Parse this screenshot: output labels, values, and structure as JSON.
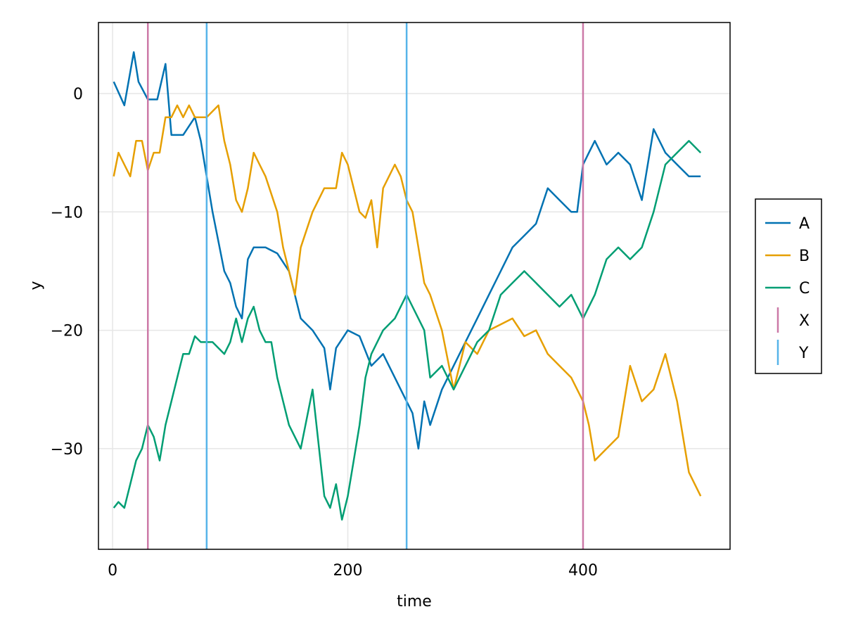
{
  "chart_data": {
    "type": "line",
    "title": "",
    "xlabel": "time",
    "ylabel": "y",
    "xlim": [
      -12,
      525
    ],
    "ylim": [
      -38.5,
      6
    ],
    "xticks": [
      0,
      200,
      400
    ],
    "yticks": [
      0,
      -10,
      -20,
      -30
    ],
    "ytick_labels": [
      "0",
      "−10",
      "−20",
      "−30"
    ],
    "grid": true,
    "legend_position": "right",
    "series": [
      {
        "name": "A",
        "color": "#0072B2",
        "x": [
          1,
          10,
          18,
          22,
          30,
          38,
          45,
          50,
          60,
          70,
          75,
          80,
          85,
          95,
          100,
          105,
          110,
          115,
          120,
          125,
          130,
          140,
          150,
          160,
          170,
          180,
          185,
          190,
          200,
          210,
          220,
          230,
          240,
          250,
          255,
          260,
          265,
          270,
          280,
          290,
          300,
          310,
          320,
          330,
          340,
          350,
          360,
          370,
          380,
          390,
          395,
          400,
          405,
          410,
          420,
          430,
          440,
          450,
          460,
          470,
          480,
          490,
          500
        ],
        "y": [
          1,
          -1,
          3.5,
          1,
          -0.5,
          -0.5,
          2.5,
          -3.5,
          -3.5,
          -2,
          -4,
          -7,
          -10,
          -15,
          -16,
          -18,
          -19,
          -14,
          -13,
          -13,
          -13,
          -13.5,
          -15,
          -19,
          -20,
          -21.5,
          -25,
          -21.5,
          -20,
          -20.5,
          -23,
          -22,
          -24,
          -26,
          -27,
          -30,
          -26,
          -28,
          -25,
          -23,
          -21,
          -19,
          -17,
          -15,
          -13,
          -12,
          -11,
          -8,
          -9,
          -10,
          -10,
          -6,
          -5,
          -4,
          -6,
          -5,
          -6,
          -9,
          -3,
          -5,
          -6,
          -7,
          -7
        ]
      },
      {
        "name": "B",
        "color": "#E69F00",
        "x": [
          1,
          5,
          10,
          15,
          20,
          25,
          30,
          35,
          40,
          45,
          50,
          55,
          60,
          65,
          70,
          80,
          90,
          95,
          100,
          105,
          110,
          115,
          120,
          125,
          130,
          140,
          145,
          150,
          155,
          160,
          170,
          180,
          190,
          195,
          200,
          210,
          215,
          220,
          225,
          230,
          240,
          245,
          250,
          255,
          260,
          265,
          270,
          280,
          290,
          300,
          310,
          320,
          330,
          340,
          350,
          360,
          370,
          380,
          390,
          400,
          405,
          410,
          420,
          430,
          440,
          450,
          460,
          470,
          480,
          490,
          500
        ],
        "y": [
          -7,
          -5,
          -6,
          -7,
          -4,
          -4,
          -6.5,
          -5,
          -5,
          -2,
          -2,
          -1,
          -2,
          -1,
          -2,
          -2,
          -1,
          -4,
          -6,
          -9,
          -10,
          -8,
          -5,
          -6,
          -7,
          -10,
          -13,
          -15,
          -17,
          -13,
          -10,
          -8,
          -8,
          -5,
          -6,
          -10,
          -10.5,
          -9,
          -13,
          -8,
          -6,
          -7,
          -9,
          -10,
          -13,
          -16,
          -17,
          -20,
          -25,
          -21,
          -22,
          -20,
          -19.5,
          -19,
          -20.5,
          -20,
          -22,
          -23,
          -24,
          -26,
          -28,
          -31,
          -30,
          -29,
          -23,
          -26,
          -25,
          -22,
          -26,
          -32,
          -34
        ]
      },
      {
        "name": "C",
        "color": "#009E73",
        "x": [
          1,
          5,
          10,
          15,
          20,
          25,
          30,
          35,
          40,
          45,
          50,
          55,
          60,
          65,
          70,
          75,
          80,
          85,
          90,
          95,
          100,
          105,
          110,
          115,
          120,
          125,
          130,
          135,
          140,
          145,
          150,
          160,
          170,
          180,
          185,
          190,
          195,
          200,
          205,
          210,
          215,
          220,
          230,
          240,
          250,
          255,
          260,
          265,
          270,
          280,
          290,
          300,
          310,
          320,
          330,
          340,
          350,
          360,
          370,
          380,
          390,
          400,
          410,
          420,
          430,
          440,
          450,
          460,
          470,
          480,
          490,
          500
        ],
        "y": [
          -35,
          -34.5,
          -35,
          -33,
          -31,
          -30,
          -28,
          -29,
          -31,
          -28,
          -26,
          -24,
          -22,
          -22,
          -20.5,
          -21,
          -21,
          -21,
          -21.5,
          -22,
          -21,
          -19,
          -21,
          -19,
          -18,
          -20,
          -21,
          -21,
          -24,
          -26,
          -28,
          -30,
          -25,
          -34,
          -35,
          -33,
          -36,
          -34,
          -31,
          -28,
          -24,
          -22,
          -20,
          -19,
          -17,
          -18,
          -19,
          -20,
          -24,
          -23,
          -25,
          -23,
          -21,
          -20,
          -17,
          -16,
          -15,
          -16,
          -17,
          -18,
          -17,
          -19,
          -17,
          -14,
          -13,
          -14,
          -13,
          -10,
          -6,
          -5,
          -4,
          -5
        ]
      }
    ],
    "vlines": [
      {
        "name": "X",
        "color": "#CC79A7",
        "x": [
          30,
          400
        ]
      },
      {
        "name": "Y",
        "color": "#56B4E9",
        "x": [
          80,
          250
        ]
      }
    ]
  },
  "legend": {
    "items": [
      {
        "label": "A",
        "kind": "line",
        "color": "#0072B2"
      },
      {
        "label": "B",
        "kind": "line",
        "color": "#E69F00"
      },
      {
        "label": "C",
        "kind": "line",
        "color": "#009E73"
      },
      {
        "label": "X",
        "kind": "vline",
        "color": "#CC79A7"
      },
      {
        "label": "Y",
        "kind": "vline",
        "color": "#56B4E9"
      }
    ]
  }
}
